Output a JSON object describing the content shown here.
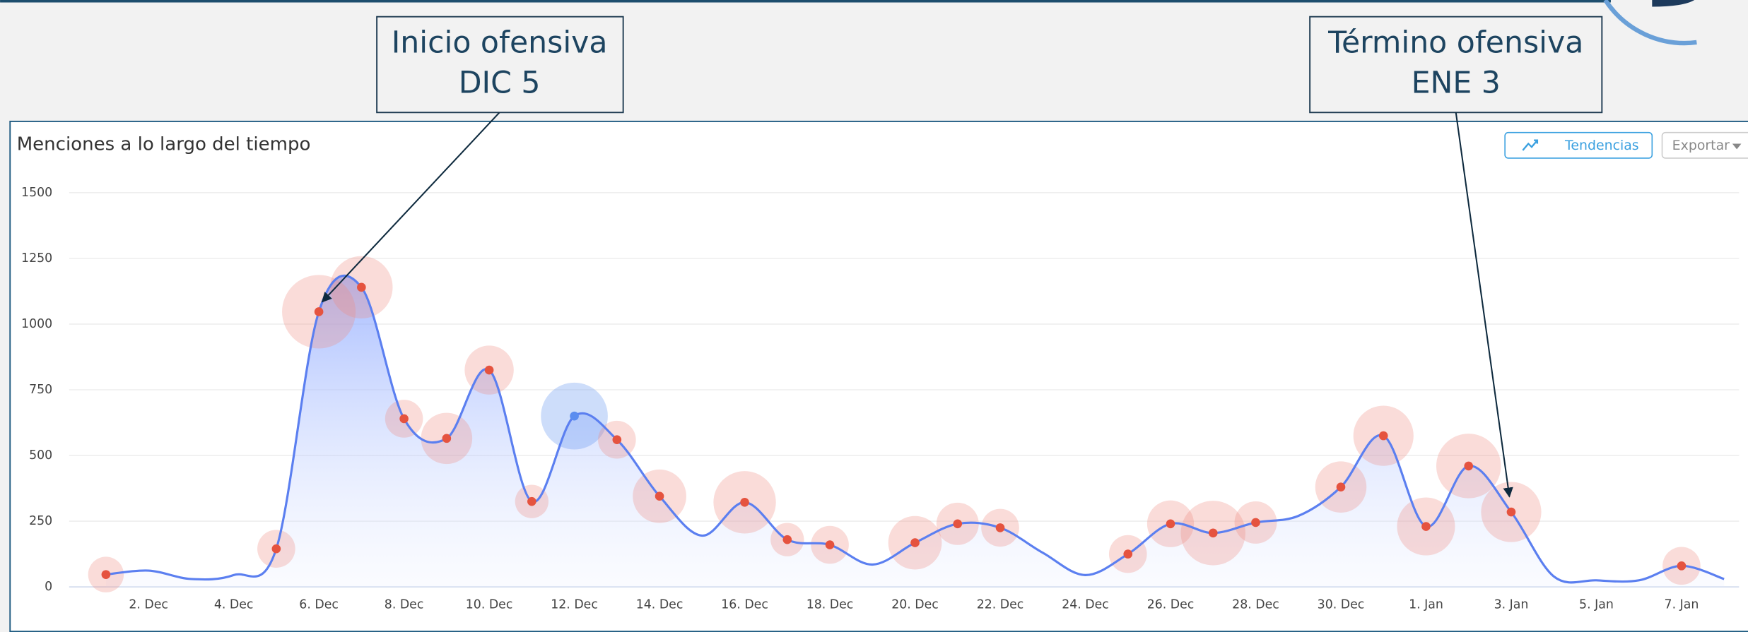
{
  "chart_data": {
    "type": "line",
    "title": "Menciones a lo largo del tiempo",
    "categories": [
      null,
      "2. Dec",
      null,
      "4. Dec",
      null,
      "6. Dec",
      null,
      "8. Dec",
      null,
      "10. Dec",
      null,
      "12. Dec",
      null,
      "14. Dec",
      null,
      "16. Dec",
      null,
      "18. Dec",
      null,
      "20. Dec",
      null,
      "22. Dec",
      null,
      "24. Dec",
      null,
      "26. Dec",
      null,
      "28. Dec",
      null,
      "30. Dec",
      null,
      "1. Jan",
      null,
      "3. Jan",
      null,
      "5. Jan",
      null,
      "7. Jan",
      null
    ],
    "series": [
      {
        "color": "#5b7ff0",
        "bubble_color": "#f08a80",
        "values": [
          47,
          62,
          30,
          45,
          145,
          1047,
          1140,
          640,
          565,
          825,
          325,
          650,
          560,
          345,
          195,
          322,
          180,
          160,
          85,
          168,
          240,
          225,
          130,
          45,
          125,
          240,
          205,
          245,
          270,
          380,
          575,
          230,
          460,
          285,
          40,
          25,
          25,
          80,
          30
        ],
        "sizes": [
          16,
          null,
          null,
          null,
          17,
          33,
          28,
          17,
          23,
          22,
          15,
          30,
          17,
          24,
          null,
          28,
          15,
          17,
          null,
          24,
          19,
          17,
          null,
          null,
          17,
          21,
          29,
          19,
          null,
          23,
          27,
          26,
          29,
          27,
          null,
          null,
          null,
          17,
          null
        ],
        "point_colors": [
          "#e5533f",
          null,
          null,
          null,
          "#e5533f",
          "#e5533f",
          "#e5533f",
          "#e5533f",
          "#e5533f",
          "#e5533f",
          "#e5533f",
          "#5b8def",
          "#e5533f",
          "#e5533f",
          null,
          "#e5533f",
          "#e5533f",
          "#e5533f",
          null,
          "#e5533f",
          "#e5533f",
          "#e5533f",
          null,
          null,
          "#e5533f",
          "#e5533f",
          "#e5533f",
          "#e5533f",
          null,
          "#e5533f",
          "#e5533f",
          "#e5533f",
          "#e5533f",
          "#e5533f",
          null,
          null,
          null,
          "#e5533f",
          null
        ]
      }
    ],
    "ylim": [
      0,
      1500
    ],
    "yticks": [
      0,
      250,
      500,
      750,
      1000,
      1250,
      1500
    ],
    "grid": true,
    "annotations": [
      {
        "lines": [
          "Inicio ofensiva",
          "DIC 5"
        ]
      },
      {
        "lines": [
          "Término ofensiva",
          "ENE 3"
        ]
      }
    ]
  },
  "ui": {
    "buttons": [
      "Tendencias",
      "Exportar"
    ]
  }
}
